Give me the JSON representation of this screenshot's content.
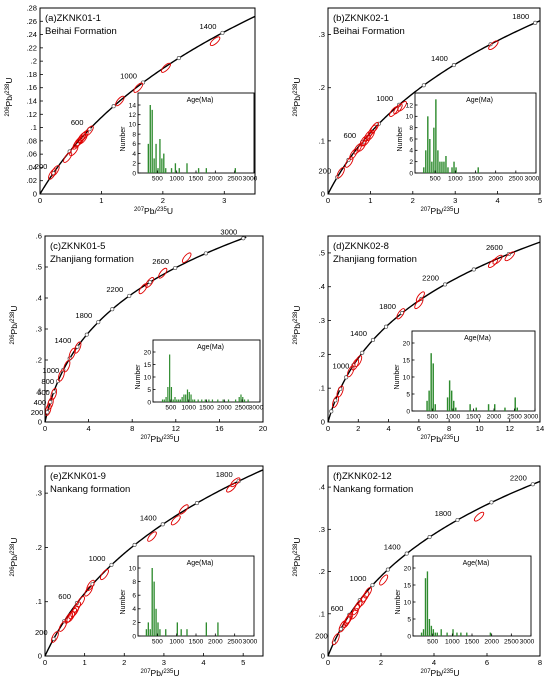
{
  "chart_data": [
    {
      "type": "scatter",
      "title": "(a)ZKNK01-1",
      "subtitle": "Beihai Formation",
      "xlabel": "207Pb/235U",
      "ylabel": "206Pb/238U",
      "xlim": [
        0,
        3.5
      ],
      "ylim": [
        0,
        0.28
      ],
      "xticks": [
        0,
        1,
        2,
        3
      ],
      "yticks": [
        0,
        0.02,
        0.04,
        0.06,
        0.08,
        0.1,
        0.12,
        0.14,
        0.16,
        0.18,
        0.2,
        0.22,
        0.24,
        0.26,
        0.28
      ],
      "age_labels": [
        200,
        600,
        1000,
        1400
      ],
      "points": [
        [
          0.2,
          0.03
        ],
        [
          0.25,
          0.035
        ],
        [
          0.45,
          0.055
        ],
        [
          0.55,
          0.065
        ],
        [
          0.6,
          0.075
        ],
        [
          0.62,
          0.078
        ],
        [
          0.65,
          0.08
        ],
        [
          0.68,
          0.085
        ],
        [
          0.72,
          0.088
        ],
        [
          0.7,
          0.083
        ],
        [
          0.8,
          0.095
        ],
        [
          1.3,
          0.14
        ],
        [
          1.6,
          0.16
        ],
        [
          2.05,
          0.19
        ],
        [
          2.85,
          0.23
        ]
      ],
      "histogram": {
        "title": "Age(Ma)",
        "ylabel": "Number",
        "xlim": [
          0,
          3000
        ],
        "ylim": [
          0,
          14
        ],
        "xticks": [
          500,
          1000,
          1500,
          2000,
          2500,
          3000
        ],
        "yticks": [
          0,
          2,
          4,
          6,
          8,
          10,
          12,
          14
        ],
        "bin_width": 50,
        "bins": [
          [
            250,
            6
          ],
          [
            300,
            14
          ],
          [
            350,
            13
          ],
          [
            400,
            3
          ],
          [
            450,
            6
          ],
          [
            500,
            1
          ],
          [
            550,
            7
          ],
          [
            600,
            3
          ],
          [
            650,
            4
          ],
          [
            700,
            1
          ],
          [
            850,
            1
          ],
          [
            950,
            2
          ],
          [
            1050,
            1
          ],
          [
            1250,
            2
          ],
          [
            1550,
            1
          ],
          [
            1750,
            1
          ],
          [
            2500,
            1
          ]
        ]
      }
    },
    {
      "type": "scatter",
      "title": "(b)ZKNK02-1",
      "subtitle": "Beihai Formation",
      "xlabel": "207Pb/235U",
      "ylabel": "206Pb/238U",
      "xlim": [
        0,
        5
      ],
      "ylim": [
        0,
        0.35
      ],
      "xticks": [
        0,
        1,
        2,
        3,
        4,
        5
      ],
      "yticks": [
        0,
        0.1,
        0.2,
        0.3
      ],
      "age_labels": [
        200,
        600,
        1000,
        1400,
        1800
      ],
      "points": [
        [
          0.3,
          0.04
        ],
        [
          0.5,
          0.06
        ],
        [
          0.6,
          0.075
        ],
        [
          0.7,
          0.085
        ],
        [
          0.8,
          0.09
        ],
        [
          0.85,
          0.1
        ],
        [
          0.9,
          0.1
        ],
        [
          0.95,
          0.11
        ],
        [
          1.0,
          0.11
        ],
        [
          1.05,
          0.12
        ],
        [
          1.1,
          0.125
        ],
        [
          1.55,
          0.155
        ],
        [
          1.65,
          0.16
        ],
        [
          1.75,
          0.165
        ],
        [
          3.9,
          0.28
        ]
      ],
      "histogram": {
        "title": "Age(Ma)",
        "ylabel": "Number",
        "xlim": [
          0,
          3000
        ],
        "ylim": [
          0,
          12
        ],
        "xticks": [
          500,
          1000,
          1500,
          2000,
          2500,
          3000
        ],
        "yticks": [
          0,
          2,
          4,
          6,
          8,
          10,
          12
        ],
        "bin_width": 50,
        "bins": [
          [
            200,
            1
          ],
          [
            250,
            4
          ],
          [
            300,
            10
          ],
          [
            350,
            6
          ],
          [
            400,
            2
          ],
          [
            450,
            8
          ],
          [
            500,
            13
          ],
          [
            550,
            4
          ],
          [
            600,
            2
          ],
          [
            650,
            2
          ],
          [
            700,
            2
          ],
          [
            750,
            3
          ],
          [
            800,
            1
          ],
          [
            900,
            1
          ],
          [
            950,
            2
          ],
          [
            1000,
            1
          ],
          [
            1550,
            1
          ]
        ]
      }
    },
    {
      "type": "scatter",
      "title": "(c)ZKNK01-5",
      "subtitle": "Zhanjiang formation",
      "xlabel": "207Pb/235U",
      "ylabel": "206Pb/238U",
      "xlim": [
        0,
        20
      ],
      "ylim": [
        0,
        0.6
      ],
      "xticks": [
        0,
        4,
        8,
        12,
        16,
        20
      ],
      "yticks": [
        0,
        0.1,
        0.2,
        0.3,
        0.4,
        0.5,
        0.6
      ],
      "age_labels": [
        200,
        400,
        600,
        800,
        1000,
        1400,
        1800,
        2200,
        2600,
        3000
      ],
      "points": [
        [
          0.3,
          0.04
        ],
        [
          0.5,
          0.06
        ],
        [
          0.8,
          0.09
        ],
        [
          1.5,
          0.15
        ],
        [
          2.0,
          0.18
        ],
        [
          2.5,
          0.22
        ],
        [
          3.0,
          0.24
        ],
        [
          9.0,
          0.43
        ],
        [
          9.6,
          0.45
        ],
        [
          10.8,
          0.48
        ],
        [
          13.0,
          0.53
        ]
      ],
      "histogram": {
        "title": "Age(Ma)",
        "ylabel": "Number",
        "xlim": [
          0,
          3000
        ],
        "ylim": [
          0,
          20
        ],
        "xticks": [
          500,
          1000,
          1500,
          2000,
          2500,
          3000
        ],
        "yticks": [
          0,
          5,
          10,
          15,
          20
        ],
        "bin_width": 50,
        "bins": [
          [
            250,
            1
          ],
          [
            300,
            1
          ],
          [
            350,
            2
          ],
          [
            400,
            6
          ],
          [
            450,
            19
          ],
          [
            500,
            6
          ],
          [
            550,
            1
          ],
          [
            600,
            2
          ],
          [
            650,
            1
          ],
          [
            700,
            1
          ],
          [
            750,
            1
          ],
          [
            800,
            2
          ],
          [
            850,
            3
          ],
          [
            900,
            3
          ],
          [
            950,
            5
          ],
          [
            1000,
            4
          ],
          [
            1050,
            3
          ],
          [
            1100,
            1
          ],
          [
            1150,
            1
          ],
          [
            1250,
            1
          ],
          [
            1350,
            1
          ],
          [
            1450,
            1
          ],
          [
            1550,
            1
          ],
          [
            1650,
            1
          ],
          [
            1800,
            1
          ],
          [
            1950,
            1
          ],
          [
            2100,
            1
          ],
          [
            2300,
            1
          ],
          [
            2400,
            2
          ],
          [
            2450,
            3
          ],
          [
            2500,
            2
          ],
          [
            2550,
            1
          ],
          [
            2650,
            1
          ]
        ]
      }
    },
    {
      "type": "scatter",
      "title": "(d)ZKNK02-8",
      "subtitle": "Zhanjiang formation",
      "xlabel": "207Pb/235U",
      "ylabel": "206Pb/238U",
      "xlim": [
        0,
        14
      ],
      "ylim": [
        0,
        0.55
      ],
      "xticks": [
        0,
        2,
        4,
        6,
        8,
        10,
        12,
        14
      ],
      "yticks": [
        0,
        0.1,
        0.2,
        0.3,
        0.4,
        0.5
      ],
      "age_labels": [
        1000,
        1400,
        1800,
        2200,
        2600
      ],
      "points": [
        [
          0.5,
          0.06
        ],
        [
          0.8,
          0.09
        ],
        [
          1.5,
          0.15
        ],
        [
          1.8,
          0.17
        ],
        [
          2.0,
          0.18
        ],
        [
          4.8,
          0.32
        ],
        [
          6.0,
          0.35
        ],
        [
          6.1,
          0.37
        ],
        [
          10.9,
          0.47
        ],
        [
          11.2,
          0.48
        ],
        [
          12.0,
          0.49
        ]
      ],
      "histogram": {
        "title": "Age(Ma)",
        "ylabel": "Number",
        "xlim": [
          0,
          3000
        ],
        "ylim": [
          0,
          20
        ],
        "xticks": [
          500,
          1000,
          1500,
          2000,
          2500,
          3000
        ],
        "yticks": [
          0,
          5,
          10,
          15,
          20
        ],
        "bin_width": 50,
        "bins": [
          [
            350,
            3
          ],
          [
            400,
            6
          ],
          [
            450,
            17
          ],
          [
            500,
            14
          ],
          [
            550,
            2
          ],
          [
            850,
            4
          ],
          [
            900,
            9
          ],
          [
            950,
            6
          ],
          [
            1000,
            3
          ],
          [
            1050,
            1
          ],
          [
            1400,
            2
          ],
          [
            1550,
            1
          ],
          [
            1850,
            2
          ],
          [
            2000,
            2
          ],
          [
            2250,
            1
          ],
          [
            2500,
            4
          ],
          [
            2550,
            1
          ]
        ]
      }
    },
    {
      "type": "scatter",
      "title": "(e)ZKNK01-9",
      "subtitle": "Nankang formation",
      "xlabel": "207Pb/235U",
      "ylabel": "206Pb/238U",
      "xlim": [
        0,
        5.5
      ],
      "ylim": [
        0,
        0.35
      ],
      "xticks": [
        0,
        1,
        2,
        3,
        4,
        5
      ],
      "yticks": [
        0,
        0.1,
        0.2,
        0.3
      ],
      "age_labels": [
        200,
        600,
        1000,
        1400,
        1800
      ],
      "points": [
        [
          0.25,
          0.035
        ],
        [
          0.45,
          0.055
        ],
        [
          0.6,
          0.07
        ],
        [
          0.65,
          0.072
        ],
        [
          0.7,
          0.078
        ],
        [
          0.75,
          0.082
        ],
        [
          0.8,
          0.09
        ],
        [
          0.9,
          0.1
        ],
        [
          1.1,
          0.12
        ],
        [
          1.15,
          0.13
        ],
        [
          1.5,
          0.15
        ],
        [
          2.7,
          0.22
        ],
        [
          3.3,
          0.25
        ],
        [
          3.5,
          0.27
        ],
        [
          4.7,
          0.31
        ],
        [
          4.8,
          0.32
        ]
      ],
      "histogram": {
        "title": "Age(Ma)",
        "ylabel": "Number",
        "xlim": [
          0,
          3000
        ],
        "ylim": [
          0,
          10
        ],
        "xticks": [
          500,
          1000,
          1500,
          2000,
          2500,
          3000
        ],
        "yticks": [
          0,
          2,
          4,
          6,
          8,
          10
        ],
        "bin_width": 50,
        "bins": [
          [
            200,
            1
          ],
          [
            250,
            2
          ],
          [
            300,
            1
          ],
          [
            350,
            10
          ],
          [
            400,
            8
          ],
          [
            450,
            4
          ],
          [
            500,
            2
          ],
          [
            550,
            1
          ],
          [
            700,
            1
          ],
          [
            1000,
            2
          ],
          [
            1100,
            1
          ],
          [
            1250,
            1
          ],
          [
            1750,
            2
          ],
          [
            2050,
            2
          ]
        ]
      }
    },
    {
      "type": "scatter",
      "title": "(f)ZKNK02-12",
      "subtitle": "Nankang formation",
      "xlabel": "207Pb/235U",
      "ylabel": "206Pb/238U",
      "xlim": [
        0,
        8
      ],
      "ylim": [
        0,
        0.45
      ],
      "xticks": [
        0,
        2,
        4,
        6,
        8
      ],
      "yticks": [
        0,
        0.1,
        0.2,
        0.3,
        0.4
      ],
      "age_labels": [
        200,
        600,
        1000,
        1400,
        1800,
        2200
      ],
      "points": [
        [
          0.3,
          0.04
        ],
        [
          0.55,
          0.07
        ],
        [
          0.7,
          0.08
        ],
        [
          0.75,
          0.085
        ],
        [
          0.8,
          0.09
        ],
        [
          1.0,
          0.1
        ],
        [
          1.05,
          0.11
        ],
        [
          1.15,
          0.12
        ],
        [
          1.3,
          0.13
        ],
        [
          1.4,
          0.14
        ],
        [
          1.5,
          0.15
        ],
        [
          2.1,
          0.18
        ],
        [
          5.7,
          0.33
        ]
      ],
      "histogram": {
        "title": "Age(Ma)",
        "ylabel": "Number",
        "xlim": [
          0,
          3000
        ],
        "ylim": [
          0,
          20
        ],
        "xticks": [
          500,
          1000,
          1500,
          2000,
          2500,
          3000
        ],
        "yticks": [
          0,
          5,
          10,
          15,
          20
        ],
        "bin_width": 50,
        "bins": [
          [
            200,
            1
          ],
          [
            250,
            2
          ],
          [
            300,
            17
          ],
          [
            350,
            19
          ],
          [
            400,
            5
          ],
          [
            450,
            3
          ],
          [
            500,
            2
          ],
          [
            550,
            1
          ],
          [
            600,
            1
          ],
          [
            700,
            2
          ],
          [
            850,
            1
          ],
          [
            1000,
            2
          ],
          [
            1100,
            1
          ],
          [
            1200,
            1
          ],
          [
            1350,
            1
          ],
          [
            1950,
            1
          ]
        ]
      }
    }
  ]
}
